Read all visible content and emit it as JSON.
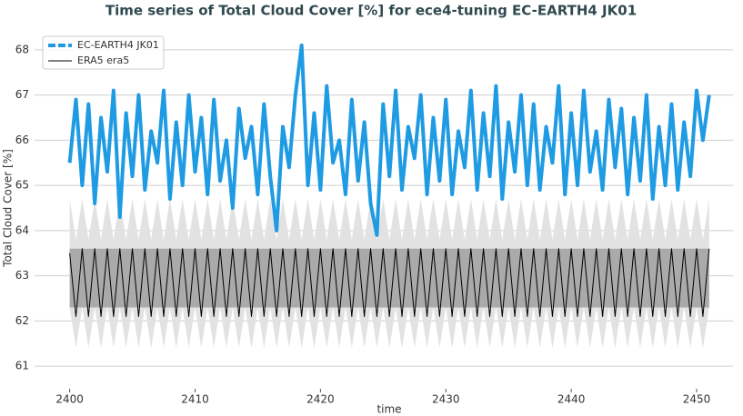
{
  "chart_data": {
    "type": "line",
    "title": "Time series of Total Cloud Cover [%] for ece4-tuning EC-EARTH4 JK01",
    "xlabel": "time",
    "ylabel": "Total Cloud Cover [%]",
    "x": [
      2400,
      2400.5,
      2401,
      2401.5,
      2402,
      2402.5,
      2403,
      2403.5,
      2404,
      2404.5,
      2405,
      2405.5,
      2406,
      2406.5,
      2407,
      2407.5,
      2408,
      2408.5,
      2409,
      2409.5,
      2410,
      2410.5,
      2411,
      2411.5,
      2412,
      2412.5,
      2413,
      2413.5,
      2414,
      2414.5,
      2415,
      2415.5,
      2416,
      2416.5,
      2417,
      2417.5,
      2418,
      2418.5,
      2419,
      2419.5,
      2420,
      2420.5,
      2421,
      2421.5,
      2422,
      2422.5,
      2423,
      2423.5,
      2424,
      2424.5,
      2425,
      2425.5,
      2426,
      2426.5,
      2427,
      2427.5,
      2428,
      2428.5,
      2429,
      2429.5,
      2430,
      2430.5,
      2431,
      2431.5,
      2432,
      2432.5,
      2433,
      2433.5,
      2434,
      2434.5,
      2435,
      2435.5,
      2436,
      2436.5,
      2437,
      2437.5,
      2438,
      2438.5,
      2439,
      2439.5,
      2440,
      2440.5,
      2441,
      2441.5,
      2442,
      2442.5,
      2443,
      2443.5,
      2444,
      2444.5,
      2445,
      2445.5,
      2446,
      2446.5,
      2447,
      2447.5,
      2448,
      2448.5,
      2449,
      2449.5,
      2450,
      2450.5,
      2451
    ],
    "series": [
      {
        "name": "EC-EARTH4 JK01",
        "color": "#1f9be3",
        "linewidth": 4,
        "values": [
          65.5,
          66.9,
          65.0,
          66.8,
          64.6,
          66.5,
          65.3,
          67.1,
          64.3,
          66.6,
          65.2,
          67.0,
          64.9,
          66.2,
          65.5,
          67.1,
          64.7,
          66.4,
          65.0,
          67.0,
          65.3,
          66.5,
          64.8,
          66.9,
          65.1,
          66.0,
          64.5,
          66.7,
          65.6,
          66.3,
          64.8,
          66.8,
          65.2,
          64.0,
          66.3,
          65.4,
          67.0,
          68.1,
          65.0,
          66.6,
          64.9,
          67.2,
          65.5,
          66.0,
          64.8,
          66.9,
          65.1,
          66.4,
          64.6,
          63.9,
          66.8,
          65.2,
          67.1,
          64.9,
          66.3,
          65.6,
          67.0,
          64.8,
          66.5,
          65.1,
          66.9,
          64.8,
          66.2,
          65.4,
          67.1,
          64.9,
          66.6,
          65.2,
          67.2,
          64.7,
          66.4,
          65.3,
          67.0,
          65.0,
          66.8,
          64.9,
          66.3,
          65.5,
          67.2,
          64.8,
          66.6,
          65.0,
          67.1,
          65.3,
          66.2,
          64.9,
          66.9,
          65.4,
          66.7,
          64.8,
          66.5,
          65.1,
          67.0,
          64.7,
          66.3,
          65.0,
          66.8,
          64.9,
          66.4,
          65.2,
          67.1,
          66.0,
          67.0
        ]
      },
      {
        "name": "ERA5 era5",
        "color": "#000000",
        "linewidth": 1,
        "values": [
          63.5,
          62.1,
          63.6,
          62.1,
          63.6,
          62.1,
          63.6,
          62.1,
          63.6,
          62.1,
          63.6,
          62.1,
          63.6,
          62.1,
          63.6,
          62.1,
          63.6,
          62.1,
          63.6,
          62.1,
          63.6,
          62.1,
          63.6,
          62.1,
          63.6,
          62.1,
          63.6,
          62.1,
          63.6,
          62.1,
          63.6,
          62.1,
          63.6,
          62.1,
          63.6,
          62.1,
          63.6,
          62.1,
          63.6,
          62.1,
          63.6,
          62.1,
          63.6,
          62.1,
          63.6,
          62.1,
          63.6,
          62.1,
          63.6,
          62.1,
          63.6,
          62.1,
          63.6,
          62.1,
          63.6,
          62.1,
          63.6,
          62.1,
          63.6,
          62.1,
          63.6,
          62.1,
          63.6,
          62.1,
          63.6,
          62.1,
          63.6,
          62.1,
          63.6,
          62.1,
          63.6,
          62.1,
          63.6,
          62.1,
          63.6,
          62.1,
          63.6,
          62.1,
          63.6,
          62.1,
          63.6,
          62.1,
          63.6,
          62.1,
          63.6,
          62.1,
          63.6,
          62.1,
          63.6,
          62.1,
          63.6,
          62.1,
          63.6,
          62.1,
          63.6,
          62.1,
          63.6,
          62.1,
          63.6,
          62.1,
          63.6,
          62.1,
          63.6
        ]
      }
    ],
    "bands": [
      {
        "color": "#e2e2e2",
        "lower": [
          62.3,
          61.4,
          62.3,
          61.4,
          62.3,
          61.4,
          62.3,
          61.4,
          62.3,
          61.4,
          62.3,
          61.4,
          62.3,
          61.4,
          62.3,
          61.4,
          62.3,
          61.4,
          62.3,
          61.4,
          62.3,
          61.4,
          62.3,
          61.4,
          62.3,
          61.4,
          62.3,
          61.4,
          62.3,
          61.4,
          62.3,
          61.4,
          62.3,
          61.4,
          62.3,
          61.4,
          62.3,
          61.4,
          62.3,
          61.4,
          62.3,
          61.4,
          62.3,
          61.4,
          62.3,
          61.4,
          62.3,
          61.4,
          62.3,
          61.4,
          62.3,
          61.4,
          62.3,
          61.4,
          62.3,
          61.4,
          62.3,
          61.4,
          62.3,
          61.4,
          62.3,
          61.4,
          62.3,
          61.4,
          62.3,
          61.4,
          62.3,
          61.4,
          62.3,
          61.4,
          62.3,
          61.4,
          62.3,
          61.4,
          62.3,
          61.4,
          62.3,
          61.4,
          62.3,
          61.4,
          62.3,
          61.4,
          62.3,
          61.4,
          62.3,
          61.4,
          62.3,
          61.4,
          62.3,
          61.4,
          62.3,
          61.4,
          62.3,
          61.4,
          62.3,
          61.4,
          62.3,
          61.4,
          62.3,
          61.4,
          62.3,
          61.4,
          62.3
        ],
        "upper": [
          64.7,
          63.8,
          64.7,
          63.8,
          64.7,
          63.8,
          64.7,
          63.8,
          64.7,
          63.8,
          64.7,
          63.8,
          64.7,
          63.8,
          64.7,
          63.8,
          64.7,
          63.8,
          64.7,
          63.8,
          64.7,
          63.8,
          64.7,
          63.8,
          64.7,
          63.8,
          64.7,
          63.8,
          64.7,
          63.8,
          64.7,
          63.8,
          64.7,
          63.8,
          64.7,
          63.8,
          64.7,
          63.8,
          64.7,
          63.8,
          64.7,
          63.8,
          64.7,
          63.8,
          64.7,
          63.8,
          64.7,
          63.8,
          64.7,
          63.8,
          64.7,
          63.8,
          64.7,
          63.8,
          64.7,
          63.8,
          64.7,
          63.8,
          64.7,
          63.8,
          64.7,
          63.8,
          64.7,
          63.8,
          64.7,
          63.8,
          64.7,
          63.8,
          64.7,
          63.8,
          64.7,
          63.8,
          64.7,
          63.8,
          64.7,
          63.8,
          64.7,
          63.8,
          64.7,
          63.8,
          64.7,
          63.8,
          64.7,
          63.8,
          64.7,
          63.8,
          64.7,
          63.8,
          64.7,
          63.8,
          64.7,
          63.8,
          64.7,
          63.8,
          64.7,
          63.8,
          64.7,
          63.8,
          64.7,
          63.8,
          64.7,
          63.8,
          64.7
        ]
      },
      {
        "color": "#9c9c9c",
        "lower": 62.3,
        "upper": 63.6
      }
    ],
    "xlim": [
      2397.2,
      2452.9
    ],
    "ylim": [
      60.5,
      68.5
    ],
    "xticks": [
      2400,
      2410,
      2420,
      2430,
      2440,
      2450
    ],
    "yticks": [
      61,
      62,
      63,
      64,
      65,
      66,
      67,
      68
    ],
    "grid": true,
    "legend": "upper left"
  }
}
